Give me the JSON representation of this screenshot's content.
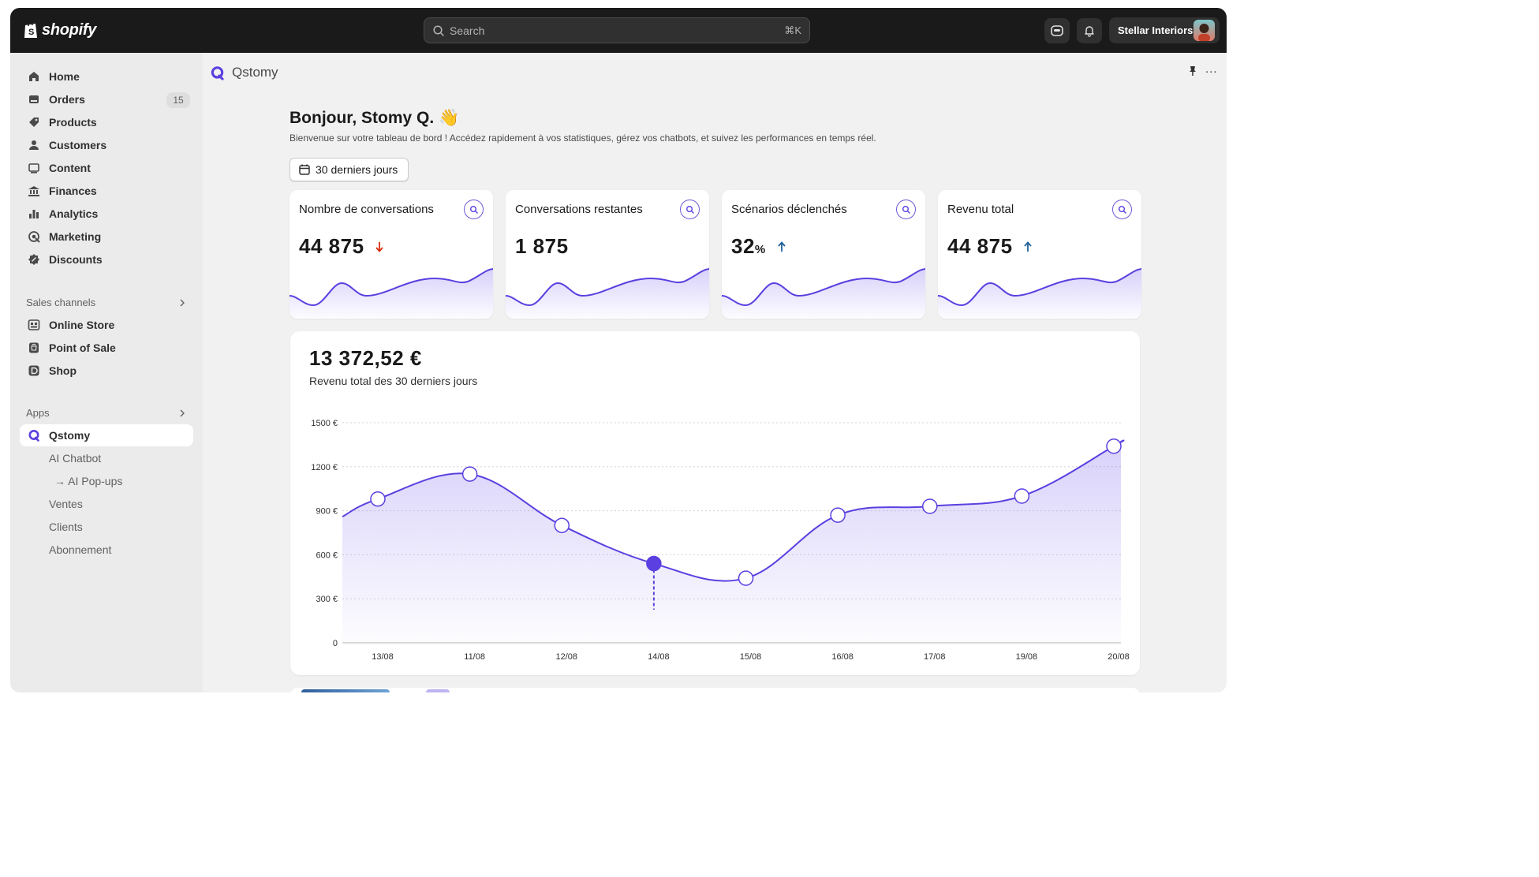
{
  "topbar": {
    "logo_text": "shopify",
    "search_placeholder": "Search",
    "search_shortcut": "⌘K",
    "store_name": "Stellar Interiors"
  },
  "sidebar": {
    "items": [
      {
        "label": "Home",
        "icon": "home-icon"
      },
      {
        "label": "Orders",
        "icon": "orders-icon",
        "badge": "15"
      },
      {
        "label": "Products",
        "icon": "tag-icon"
      },
      {
        "label": "Customers",
        "icon": "person-icon"
      },
      {
        "label": "Content",
        "icon": "content-icon"
      },
      {
        "label": "Finances",
        "icon": "bank-icon"
      },
      {
        "label": "Analytics",
        "icon": "bar-chart-icon"
      },
      {
        "label": "Marketing",
        "icon": "target-icon"
      },
      {
        "label": "Discounts",
        "icon": "discount-icon"
      }
    ],
    "sales_channels_label": "Sales channels",
    "channels": [
      {
        "label": "Online Store",
        "icon": "online-store-icon"
      },
      {
        "label": "Point of Sale",
        "icon": "pos-icon"
      },
      {
        "label": "Shop",
        "icon": "shop-icon"
      }
    ],
    "apps_label": "Apps",
    "app": {
      "label": "Qstomy",
      "icon": "qstomy-icon"
    },
    "app_sub": [
      "AI Chatbot",
      "→ AI Pop-ups",
      "Ventes",
      "Clients",
      "Abonnement"
    ]
  },
  "main": {
    "app_title": "Qstomy",
    "more_label": "...",
    "greeting": "Bonjour, Stomy Q. 👋",
    "subtitle": "Bienvenue sur votre tableau de bord ! Accédez rapidement à vos statistiques, gérez vos chatbots, et suivez les performances en temps réel.",
    "date_range": "30 derniers jours",
    "stats": [
      {
        "title": "Nombre de conversations",
        "value": "44 875",
        "unit": "",
        "trend": "down"
      },
      {
        "title": "Conversations restantes",
        "value": "1 875",
        "unit": "",
        "trend": "none"
      },
      {
        "title": "Scénarios déclenchés",
        "value": "32",
        "unit": "%",
        "trend": "up"
      },
      {
        "title": "Revenu total",
        "value": "44 875",
        "unit": "",
        "trend": "up"
      }
    ],
    "colors": {
      "accent": "#5b3fe0",
      "down": "#d82c0d",
      "up": "#1f5f99"
    }
  },
  "revenue": {
    "value": "13 372,52  €",
    "label": "Revenu total des 30 derniers jours"
  },
  "chart_data": {
    "type": "area",
    "x": [
      "13/08",
      "11/08",
      "12/08",
      "14/08",
      "15/08",
      "16/08",
      "17/08",
      "19/08",
      "20/08"
    ],
    "values": [
      980,
      1150,
      800,
      540,
      440,
      870,
      930,
      1000,
      1340
    ],
    "highlight_index": 3,
    "yticks": [
      "0",
      "300 €",
      "600 €",
      "900 €",
      "1200 €",
      "1500 €"
    ],
    "ylim": [
      0,
      1500
    ],
    "grid": true
  }
}
